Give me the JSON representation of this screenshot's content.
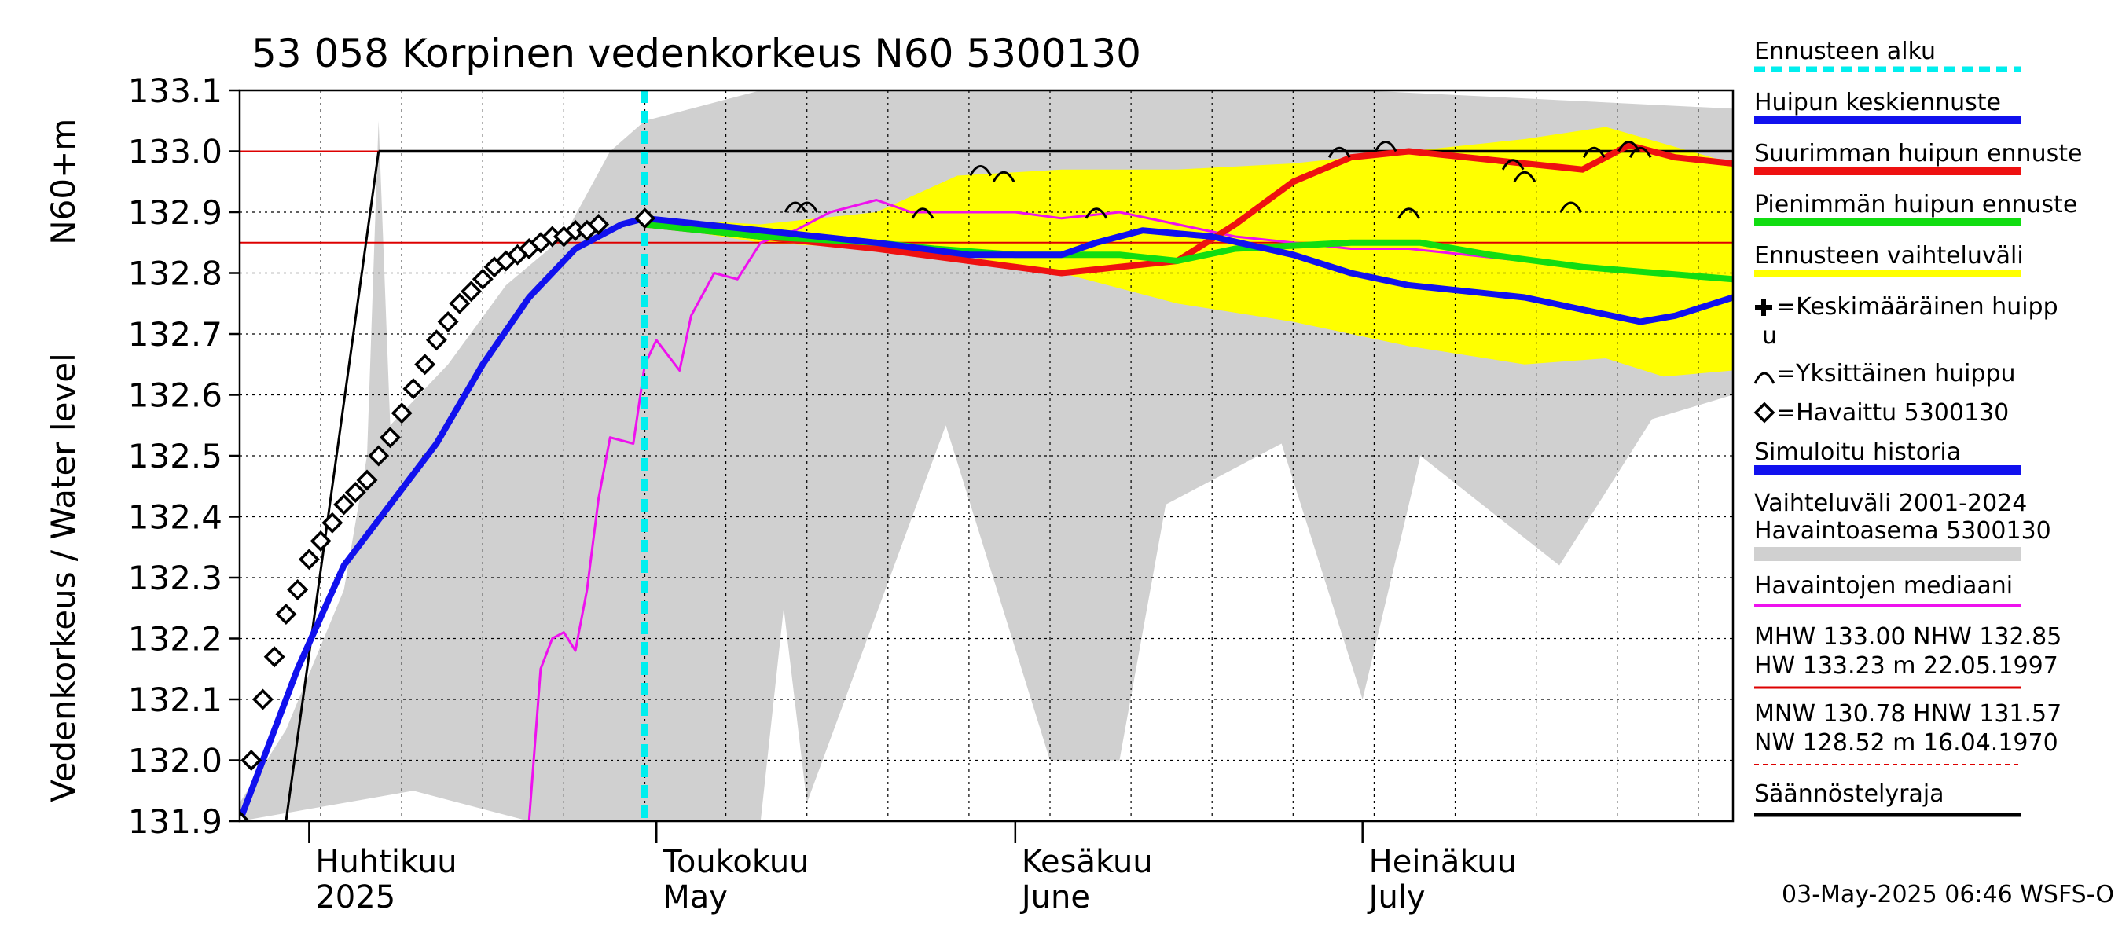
{
  "chart_data": {
    "type": "line",
    "title": "53 058 Korpinen vedenkorkeus N60 5300130",
    "ylabel_top": "N60+m",
    "ylabel": "Vedenkorkeus / Water level",
    "ylim": [
      131.9,
      133.1
    ],
    "yticks": [
      "131.9",
      "132.0",
      "132.1",
      "132.2",
      "132.3",
      "132.4",
      "132.5",
      "132.6",
      "132.7",
      "132.8",
      "132.9",
      "133.0",
      "133.1"
    ],
    "x_start": "2025-03-26",
    "x_end": "2025-08-02",
    "months": [
      {
        "date": "2025-04-01",
        "fi": "Huhtikuu",
        "en": "2025"
      },
      {
        "date": "2025-05-01",
        "fi": "Toukokuu",
        "en": "May"
      },
      {
        "date": "2025-06-01",
        "fi": "Kesäkuu",
        "en": "June"
      },
      {
        "date": "2025-07-01",
        "fi": "Heinäkuu",
        "en": "July"
      }
    ],
    "forecast_start": "2025-04-30",
    "reference_lines": {
      "MHW": 133.0,
      "NHW": 132.85
    },
    "regulation_line": {
      "level": 133.0,
      "from": "2025-04-07",
      "ramp_start_date": "2025-03-30"
    },
    "history_range": {
      "name": "Vaihteluväli 2001-2024 Havaintoasema 5300130",
      "upper": [
        [
          "2025-03-26",
          131.93
        ],
        [
          "2025-03-30",
          132.05
        ],
        [
          "2025-04-04",
          132.28
        ],
        [
          "2025-04-06",
          132.5
        ],
        [
          "2025-04-07",
          133.05
        ],
        [
          "2025-04-08",
          132.55
        ],
        [
          "2025-04-13",
          132.65
        ],
        [
          "2025-04-18",
          132.78
        ],
        [
          "2025-04-23",
          132.86
        ],
        [
          "2025-04-27",
          133.0
        ],
        [
          "2025-04-30",
          133.05
        ],
        [
          "2025-05-10",
          133.1
        ],
        [
          "2025-06-01",
          133.1
        ],
        [
          "2025-07-01",
          133.1
        ],
        [
          "2025-08-02",
          133.07
        ]
      ],
      "lower": [
        [
          "2025-03-26",
          131.9
        ],
        [
          "2025-04-10",
          131.95
        ],
        [
          "2025-04-20",
          131.9
        ],
        [
          "2025-05-10",
          131.9
        ],
        [
          "2025-05-12",
          132.25
        ],
        [
          "2025-05-14",
          131.93
        ],
        [
          "2025-05-26",
          132.55
        ],
        [
          "2025-06-04",
          132.0
        ],
        [
          "2025-06-10",
          132.0
        ],
        [
          "2025-06-14",
          132.42
        ],
        [
          "2025-06-24",
          132.52
        ],
        [
          "2025-07-01",
          132.1
        ],
        [
          "2025-07-06",
          132.5
        ],
        [
          "2025-07-18",
          132.32
        ],
        [
          "2025-07-26",
          132.56
        ],
        [
          "2025-08-02",
          132.6
        ]
      ]
    },
    "forecast_range": {
      "name": "Ennusteen vaihteluväli",
      "upper": [
        [
          "2025-04-30",
          132.89
        ],
        [
          "2025-05-10",
          132.88
        ],
        [
          "2025-05-20",
          132.9
        ],
        [
          "2025-05-27",
          132.96
        ],
        [
          "2025-06-05",
          132.97
        ],
        [
          "2025-06-15",
          132.97
        ],
        [
          "2025-06-25",
          132.98
        ],
        [
          "2025-07-05",
          133.0
        ],
        [
          "2025-07-15",
          133.02
        ],
        [
          "2025-07-22",
          133.04
        ],
        [
          "2025-08-02",
          132.98
        ]
      ],
      "lower": [
        [
          "2025-04-30",
          132.88
        ],
        [
          "2025-05-10",
          132.85
        ],
        [
          "2025-05-20",
          132.84
        ],
        [
          "2025-05-27",
          132.83
        ],
        [
          "2025-06-05",
          132.8
        ],
        [
          "2025-06-15",
          132.75
        ],
        [
          "2025-06-25",
          132.72
        ],
        [
          "2025-07-05",
          132.68
        ],
        [
          "2025-07-15",
          132.65
        ],
        [
          "2025-07-22",
          132.66
        ],
        [
          "2025-07-27",
          132.63
        ],
        [
          "2025-08-02",
          132.64
        ]
      ]
    },
    "series": [
      {
        "name": "Havaintojen mediaani",
        "color": "#ee11ee",
        "points": [
          [
            "2025-04-20",
            131.9
          ],
          [
            "2025-04-21",
            132.15
          ],
          [
            "2025-04-22",
            132.2
          ],
          [
            "2025-04-23",
            132.21
          ],
          [
            "2025-04-24",
            132.18
          ],
          [
            "2025-04-25",
            132.28
          ],
          [
            "2025-04-26",
            132.43
          ],
          [
            "2025-04-27",
            132.53
          ],
          [
            "2025-04-29",
            132.52
          ],
          [
            "2025-04-30",
            132.65
          ],
          [
            "2025-05-01",
            132.69
          ],
          [
            "2025-05-03",
            132.64
          ],
          [
            "2025-05-04",
            132.73
          ],
          [
            "2025-05-06",
            132.8
          ],
          [
            "2025-05-08",
            132.79
          ],
          [
            "2025-05-10",
            132.85
          ],
          [
            "2025-05-13",
            132.87
          ],
          [
            "2025-05-16",
            132.9
          ],
          [
            "2025-05-20",
            132.92
          ],
          [
            "2025-05-23",
            132.9
          ],
          [
            "2025-05-27",
            132.9
          ],
          [
            "2025-06-01",
            132.9
          ],
          [
            "2025-06-05",
            132.89
          ],
          [
            "2025-06-10",
            132.9
          ],
          [
            "2025-06-15",
            132.88
          ],
          [
            "2025-06-20",
            132.86
          ],
          [
            "2025-06-25",
            132.85
          ],
          [
            "2025-06-30",
            132.84
          ],
          [
            "2025-07-05",
            132.84
          ],
          [
            "2025-07-10",
            132.83
          ],
          [
            "2025-07-15",
            132.82
          ],
          [
            "2025-07-20",
            132.81
          ],
          [
            "2025-07-25",
            132.8
          ],
          [
            "2025-08-02",
            132.79
          ]
        ]
      },
      {
        "name": "Suurimman huipun ennuste",
        "color": "#ee1111",
        "points": [
          [
            "2025-04-30",
            132.88
          ],
          [
            "2025-05-10",
            132.86
          ],
          [
            "2025-05-20",
            132.84
          ],
          [
            "2025-05-28",
            132.82
          ],
          [
            "2025-06-05",
            132.8
          ],
          [
            "2025-06-10",
            132.81
          ],
          [
            "2025-06-15",
            132.82
          ],
          [
            "2025-06-20",
            132.88
          ],
          [
            "2025-06-25",
            132.95
          ],
          [
            "2025-06-30",
            132.99
          ],
          [
            "2025-07-05",
            133.0
          ],
          [
            "2025-07-10",
            132.99
          ],
          [
            "2025-07-15",
            132.98
          ],
          [
            "2025-07-20",
            132.97
          ],
          [
            "2025-07-24",
            133.01
          ],
          [
            "2025-07-28",
            132.99
          ],
          [
            "2025-08-02",
            132.98
          ]
        ]
      },
      {
        "name": "Pienimmän huipun ennuste",
        "color": "#11dd11",
        "points": [
          [
            "2025-04-30",
            132.88
          ],
          [
            "2025-05-10",
            132.86
          ],
          [
            "2025-05-20",
            132.85
          ],
          [
            "2025-05-25",
            132.84
          ],
          [
            "2025-06-01",
            132.83
          ],
          [
            "2025-06-10",
            132.83
          ],
          [
            "2025-06-15",
            132.82
          ],
          [
            "2025-06-20",
            132.84
          ],
          [
            "2025-06-30",
            132.85
          ],
          [
            "2025-07-06",
            132.85
          ],
          [
            "2025-07-12",
            132.83
          ],
          [
            "2025-07-20",
            132.81
          ],
          [
            "2025-08-02",
            132.79
          ]
        ]
      },
      {
        "name": "Huipun keskiennuste",
        "color": "#1111ee",
        "points": [
          [
            "2025-03-26",
            131.9
          ],
          [
            "2025-03-28",
            132.0
          ],
          [
            "2025-03-31",
            132.15
          ],
          [
            "2025-04-04",
            132.32
          ],
          [
            "2025-04-08",
            132.42
          ],
          [
            "2025-04-12",
            132.52
          ],
          [
            "2025-04-16",
            132.65
          ],
          [
            "2025-04-20",
            132.76
          ],
          [
            "2025-04-24",
            132.84
          ],
          [
            "2025-04-28",
            132.88
          ],
          [
            "2025-04-30",
            132.89
          ],
          [
            "2025-05-10",
            132.87
          ],
          [
            "2025-05-20",
            132.85
          ],
          [
            "2025-05-28",
            132.83
          ],
          [
            "2025-06-01",
            132.83
          ],
          [
            "2025-06-05",
            132.83
          ],
          [
            "2025-06-08",
            132.85
          ],
          [
            "2025-06-12",
            132.87
          ],
          [
            "2025-06-18",
            132.86
          ],
          [
            "2025-06-25",
            132.83
          ],
          [
            "2025-06-30",
            132.8
          ],
          [
            "2025-07-05",
            132.78
          ],
          [
            "2025-07-10",
            132.77
          ],
          [
            "2025-07-15",
            132.76
          ],
          [
            "2025-07-20",
            132.74
          ],
          [
            "2025-07-25",
            132.72
          ],
          [
            "2025-07-28",
            132.73
          ],
          [
            "2025-08-02",
            132.76
          ]
        ]
      }
    ],
    "observed": {
      "name": "=Havaittu 5300130",
      "points": [
        [
          "2025-03-26",
          131.9
        ],
        [
          "2025-03-27",
          132.0
        ],
        [
          "2025-03-28",
          132.1
        ],
        [
          "2025-03-29",
          132.17
        ],
        [
          "2025-03-30",
          132.24
        ],
        [
          "2025-03-31",
          132.28
        ],
        [
          "2025-04-01",
          132.33
        ],
        [
          "2025-04-02",
          132.36
        ],
        [
          "2025-04-03",
          132.39
        ],
        [
          "2025-04-04",
          132.42
        ],
        [
          "2025-04-05",
          132.44
        ],
        [
          "2025-04-06",
          132.46
        ],
        [
          "2025-04-07",
          132.5
        ],
        [
          "2025-04-08",
          132.53
        ],
        [
          "2025-04-09",
          132.57
        ],
        [
          "2025-04-10",
          132.61
        ],
        [
          "2025-04-11",
          132.65
        ],
        [
          "2025-04-12",
          132.69
        ],
        [
          "2025-04-13",
          132.72
        ],
        [
          "2025-04-14",
          132.75
        ],
        [
          "2025-04-15",
          132.77
        ],
        [
          "2025-04-16",
          132.79
        ],
        [
          "2025-04-17",
          132.81
        ],
        [
          "2025-04-18",
          132.82
        ],
        [
          "2025-04-19",
          132.83
        ],
        [
          "2025-04-20",
          132.84
        ],
        [
          "2025-04-21",
          132.85
        ],
        [
          "2025-04-22",
          132.86
        ],
        [
          "2025-04-23",
          132.86
        ],
        [
          "2025-04-24",
          132.87
        ],
        [
          "2025-04-25",
          132.87
        ],
        [
          "2025-04-26",
          132.88
        ],
        [
          "2025-04-30",
          132.89
        ]
      ]
    },
    "individual_peaks": [
      [
        "2025-05-13",
        132.9
      ],
      [
        "2025-05-14",
        132.9
      ],
      [
        "2025-05-24",
        132.89
      ],
      [
        "2025-05-29",
        132.96
      ],
      [
        "2025-05-31",
        132.95
      ],
      [
        "2025-06-08",
        132.89
      ],
      [
        "2025-06-29",
        132.99
      ],
      [
        "2025-07-03",
        133.0
      ],
      [
        "2025-07-05",
        132.89
      ],
      [
        "2025-07-14",
        132.97
      ],
      [
        "2025-07-15",
        132.95
      ],
      [
        "2025-07-19",
        132.9
      ],
      [
        "2025-07-21",
        132.99
      ],
      [
        "2025-07-24",
        133.0
      ],
      [
        "2025-07-25",
        132.99
      ]
    ],
    "legend": [
      "Ennusteen alku",
      "Huipun keskiennuste",
      "Suurimman huipun ennuste",
      "Pienimmän huipun ennuste",
      "Ennusteen vaihteluväli",
      "=Keskimääräinen huipp",
      "u",
      "=Yksittäinen huippu",
      "=Havaittu 5300130",
      "Simuloitu historia",
      "Vaihteluväli 2001-2024",
      " Havaintoasema 5300130",
      "Havaintojen mediaani",
      "MHW 133.00 NHW 132.85",
      "HW 133.23 m 22.05.1997",
      "MNW 130.78 HNW 131.57",
      "NW 128.52 m 16.04.1970",
      "Säännöstelyraja"
    ],
    "colors": {
      "forecast_start": "#00eeee",
      "mean_forecast": "#1111ee",
      "max_forecast": "#ee1111",
      "min_forecast": "#11dd11",
      "forecast_range": "#ffff00",
      "history_range": "#d0d0d0",
      "median": "#ee11ee",
      "hw_line": "#dd0000",
      "regulation": "#000000"
    },
    "footer": "03-May-2025 06:46 WSFS-O"
  }
}
